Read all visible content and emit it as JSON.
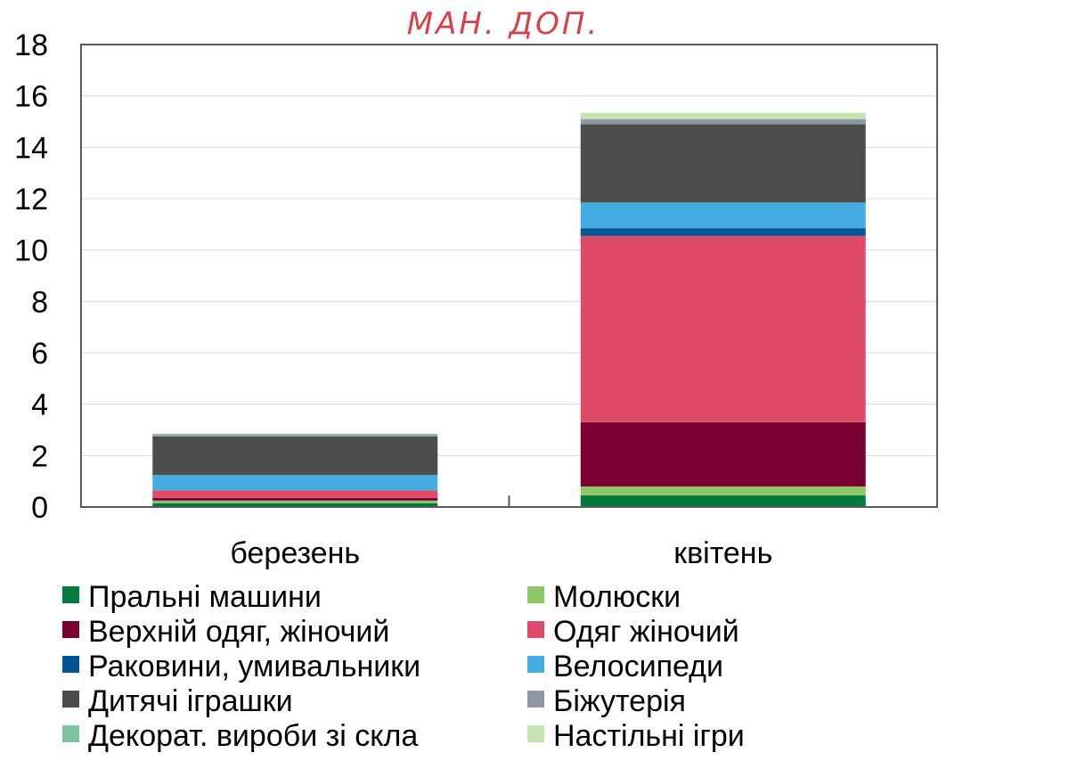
{
  "annotation": "МАН. ДОП.",
  "chart_data": {
    "type": "bar",
    "stacked": true,
    "categories": [
      "березень",
      "квітень"
    ],
    "ylim": [
      0,
      18
    ],
    "yticks": [
      0,
      2,
      4,
      6,
      8,
      10,
      12,
      14,
      16,
      18
    ],
    "grid": true,
    "legend_position": "bottom",
    "series": [
      {
        "name": "Пральні машини",
        "color": "#007a3d",
        "values": [
          0.15,
          0.45
        ]
      },
      {
        "name": "Молюски",
        "color": "#8cc866",
        "values": [
          0.1,
          0.35
        ]
      },
      {
        "name": "Верхній одяг, жіночий",
        "color": "#7b0032",
        "values": [
          0.1,
          2.5
        ]
      },
      {
        "name": "Одяг жіночий",
        "color": "#de4a68",
        "values": [
          0.3,
          7.25
        ]
      },
      {
        "name": "Раковини, умивальники",
        "color": "#005597",
        "values": [
          0.0,
          0.3
        ]
      },
      {
        "name": "Велосипеди",
        "color": "#45ade3",
        "values": [
          0.6,
          1.0
        ]
      },
      {
        "name": "Дитячі іграшки",
        "color": "#4d4d4d",
        "values": [
          1.5,
          3.05
        ]
      },
      {
        "name": "Біжутерія",
        "color": "#8e98a2",
        "values": [
          0.05,
          0.2
        ]
      },
      {
        "name": "Декорат. вироби зі скла",
        "color": "#7fc3a0",
        "values": [
          0.05,
          0.0
        ]
      },
      {
        "name": "Настільні ігри",
        "color": "#c5e4b0",
        "values": [
          0.0,
          0.25
        ]
      }
    ]
  }
}
